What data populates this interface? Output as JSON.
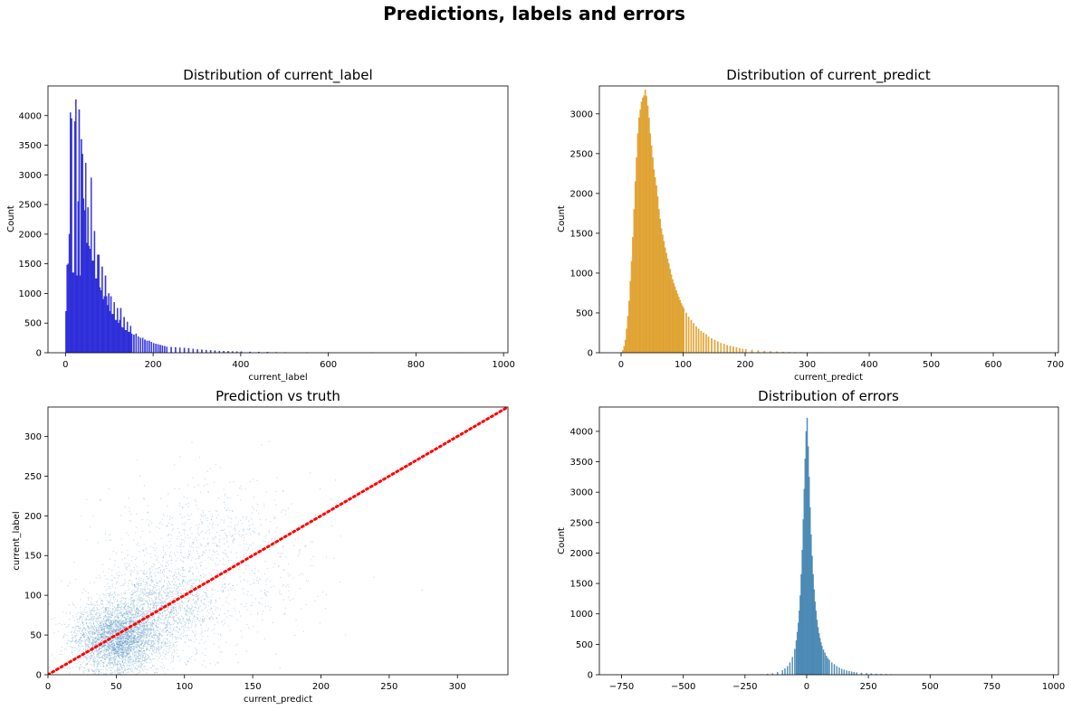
{
  "figure": {
    "title": "Predictions, labels and errors"
  },
  "colors": {
    "label_hist": "#1a1ad6",
    "predict_hist": "#dd9a1f",
    "scatter": "#4a8bbd",
    "errors_hist": "#3a7fae",
    "identity_line": "#ff0000"
  },
  "chart_data": [
    {
      "type": "histogram",
      "title": "Distribution of current_label",
      "xlabel": "current_label",
      "ylabel": "Count",
      "xlim": [
        -40,
        1010
      ],
      "ylim": [
        0,
        4500
      ],
      "xticks": [
        0,
        200,
        400,
        600,
        800,
        1000
      ],
      "yticks": [
        0,
        500,
        1000,
        1500,
        2000,
        2500,
        3000,
        3500,
        4000
      ],
      "color": "#1a1ad6",
      "bin_width": 2.5,
      "bins": [
        [
          0,
          700
        ],
        [
          2.5,
          1480
        ],
        [
          5,
          1500
        ],
        [
          7.5,
          2000
        ],
        [
          10,
          4050
        ],
        [
          12.5,
          3950
        ],
        [
          15,
          1350
        ],
        [
          17.5,
          1350
        ],
        [
          20,
          3900
        ],
        [
          22.5,
          4270
        ],
        [
          25,
          1300
        ],
        [
          27.5,
          2550
        ],
        [
          30,
          4100
        ],
        [
          32.5,
          1300
        ],
        [
          35,
          3600
        ],
        [
          37.5,
          3350
        ],
        [
          40,
          2600
        ],
        [
          42.5,
          2400
        ],
        [
          45,
          3200
        ],
        [
          47.5,
          1850
        ],
        [
          50,
          2450
        ],
        [
          52.5,
          1800
        ],
        [
          55,
          1750
        ],
        [
          57.5,
          2950
        ],
        [
          60,
          1550
        ],
        [
          62.5,
          1550
        ],
        [
          65,
          2050
        ],
        [
          67.5,
          1250
        ],
        [
          70,
          1250
        ],
        [
          72.5,
          1650
        ],
        [
          75,
          1650
        ],
        [
          77.5,
          1100
        ],
        [
          80,
          1050
        ],
        [
          82.5,
          1450
        ],
        [
          85,
          900
        ],
        [
          87.5,
          950
        ],
        [
          90,
          1300
        ],
        [
          92.5,
          950
        ],
        [
          95,
          800
        ],
        [
          97.5,
          1000
        ],
        [
          100,
          700
        ],
        [
          102.5,
          950
        ],
        [
          105,
          650
        ],
        [
          107.5,
          650
        ],
        [
          110,
          850
        ],
        [
          112.5,
          550
        ],
        [
          115,
          550
        ],
        [
          117.5,
          750
        ],
        [
          120,
          500
        ],
        [
          122.5,
          550
        ],
        [
          125,
          750
        ],
        [
          127.5,
          430
        ],
        [
          130,
          420
        ],
        [
          132.5,
          600
        ],
        [
          135,
          380
        ],
        [
          137.5,
          380
        ],
        [
          140,
          520
        ],
        [
          142.5,
          350
        ],
        [
          145,
          350
        ],
        [
          147.5,
          450
        ],
        [
          150,
          320
        ],
        [
          155,
          300
        ],
        [
          160,
          320
        ],
        [
          165,
          270
        ],
        [
          170,
          250
        ],
        [
          175,
          250
        ],
        [
          180,
          220
        ],
        [
          185,
          200
        ],
        [
          190,
          200
        ],
        [
          195,
          180
        ],
        [
          200,
          160
        ],
        [
          205,
          150
        ],
        [
          210,
          140
        ],
        [
          215,
          130
        ],
        [
          220,
          120
        ],
        [
          225,
          110
        ],
        [
          230,
          100
        ],
        [
          240,
          95
        ],
        [
          250,
          90
        ],
        [
          260,
          85
        ],
        [
          270,
          80
        ],
        [
          280,
          75
        ],
        [
          290,
          65
        ],
        [
          300,
          55
        ],
        [
          310,
          50
        ],
        [
          320,
          45
        ],
        [
          330,
          40
        ],
        [
          340,
          35
        ],
        [
          350,
          30
        ],
        [
          360,
          28
        ],
        [
          370,
          25
        ],
        [
          380,
          22
        ],
        [
          390,
          20
        ],
        [
          400,
          18
        ],
        [
          420,
          15
        ],
        [
          440,
          12
        ],
        [
          460,
          10
        ],
        [
          480,
          8
        ],
        [
          500,
          6
        ],
        [
          550,
          4
        ],
        [
          600,
          3
        ],
        [
          700,
          2
        ],
        [
          800,
          1
        ],
        [
          900,
          1
        ]
      ]
    },
    {
      "type": "histogram",
      "title": "Distribution of current_predict",
      "xlabel": "current_predict",
      "ylabel": "Count",
      "xlim": [
        -35,
        705
      ],
      "ylim": [
        0,
        3350
      ],
      "xticks": [
        0,
        100,
        200,
        300,
        400,
        500,
        600,
        700
      ],
      "yticks": [
        0,
        500,
        1000,
        1500,
        2000,
        2500,
        3000
      ],
      "color": "#dd9a1f",
      "bin_width": 2,
      "bins": [
        [
          0,
          5
        ],
        [
          2,
          30
        ],
        [
          4,
          80
        ],
        [
          6,
          160
        ],
        [
          8,
          300
        ],
        [
          10,
          460
        ],
        [
          12,
          650
        ],
        [
          14,
          900
        ],
        [
          16,
          1150
        ],
        [
          18,
          1450
        ],
        [
          20,
          1800
        ],
        [
          22,
          2150
        ],
        [
          24,
          2450
        ],
        [
          26,
          2750
        ],
        [
          28,
          2950
        ],
        [
          30,
          3050
        ],
        [
          32,
          3150
        ],
        [
          34,
          3200
        ],
        [
          36,
          3230
        ],
        [
          38,
          3300
        ],
        [
          40,
          3220
        ],
        [
          42,
          3100
        ],
        [
          44,
          2950
        ],
        [
          46,
          2750
        ],
        [
          48,
          2600
        ],
        [
          50,
          2450
        ],
        [
          52,
          2300
        ],
        [
          54,
          2200
        ],
        [
          56,
          2100
        ],
        [
          58,
          1960
        ],
        [
          60,
          1800
        ],
        [
          62,
          1680
        ],
        [
          64,
          1560
        ],
        [
          66,
          1480
        ],
        [
          68,
          1400
        ],
        [
          70,
          1320
        ],
        [
          72,
          1250
        ],
        [
          74,
          1180
        ],
        [
          76,
          1120
        ],
        [
          78,
          1050
        ],
        [
          80,
          980
        ],
        [
          82,
          920
        ],
        [
          84,
          870
        ],
        [
          86,
          830
        ],
        [
          88,
          780
        ],
        [
          90,
          740
        ],
        [
          92,
          700
        ],
        [
          94,
          660
        ],
        [
          96,
          620
        ],
        [
          98,
          590
        ],
        [
          100,
          560
        ],
        [
          104,
          500
        ],
        [
          108,
          450
        ],
        [
          112,
          410
        ],
        [
          116,
          370
        ],
        [
          120,
          330
        ],
        [
          124,
          300
        ],
        [
          128,
          270
        ],
        [
          132,
          250
        ],
        [
          136,
          230
        ],
        [
          140,
          200
        ],
        [
          145,
          180
        ],
        [
          150,
          160
        ],
        [
          155,
          140
        ],
        [
          160,
          120
        ],
        [
          165,
          110
        ],
        [
          170,
          95
        ],
        [
          175,
          85
        ],
        [
          180,
          75
        ],
        [
          185,
          65
        ],
        [
          190,
          55
        ],
        [
          195,
          48
        ],
        [
          200,
          42
        ],
        [
          210,
          35
        ],
        [
          220,
          28
        ],
        [
          230,
          22
        ],
        [
          240,
          17
        ],
        [
          250,
          13
        ],
        [
          260,
          10
        ],
        [
          270,
          8
        ],
        [
          280,
          6
        ],
        [
          290,
          5
        ],
        [
          300,
          4
        ],
        [
          320,
          2
        ],
        [
          350,
          1
        ],
        [
          400,
          1
        ],
        [
          500,
          1
        ],
        [
          600,
          1
        ]
      ]
    },
    {
      "type": "scatter",
      "title": "Prediction vs truth",
      "xlabel": "current_predict",
      "ylabel": "current_label",
      "xlim": [
        0,
        337
      ],
      "ylim": [
        0,
        337
      ],
      "xticks": [
        0,
        50,
        100,
        150,
        200,
        250,
        300
      ],
      "yticks": [
        0,
        50,
        100,
        150,
        200,
        250,
        300
      ],
      "color": "#4a8bbd",
      "identity_line": {
        "from": [
          0,
          0
        ],
        "to": [
          337,
          337
        ],
        "style": "dotted",
        "color": "#ff0000"
      },
      "density_clusters": [
        {
          "center": [
            50,
            45
          ],
          "spread": [
            25,
            35
          ],
          "weight": 0.55
        },
        {
          "center": [
            80,
            80
          ],
          "spread": [
            35,
            50
          ],
          "weight": 0.3
        },
        {
          "center": [
            120,
            150
          ],
          "spread": [
            60,
            80
          ],
          "weight": 0.15
        }
      ]
    },
    {
      "type": "histogram",
      "title": "Distribution of errors",
      "xlabel": "",
      "ylabel": "Count",
      "xlim": [
        -840,
        1020
      ],
      "ylim": [
        0,
        4400
      ],
      "xticks": [
        -750,
        -500,
        -250,
        0,
        250,
        500,
        750,
        1000
      ],
      "yticks": [
        0,
        500,
        1000,
        1500,
        2000,
        2500,
        3000,
        3500,
        4000
      ],
      "color": "#3a7fae",
      "bin_width": 4,
      "bins": [
        [
          -200,
          2
        ],
        [
          -180,
          5
        ],
        [
          -160,
          10
        ],
        [
          -140,
          20
        ],
        [
          -120,
          40
        ],
        [
          -100,
          70
        ],
        [
          -90,
          100
        ],
        [
          -80,
          140
        ],
        [
          -70,
          200
        ],
        [
          -60,
          290
        ],
        [
          -50,
          420
        ],
        [
          -44,
          560
        ],
        [
          -40,
          700
        ],
        [
          -36,
          850
        ],
        [
          -32,
          1050
        ],
        [
          -28,
          1300
        ],
        [
          -24,
          1650
        ],
        [
          -20,
          2050
        ],
        [
          -16,
          2550
        ],
        [
          -12,
          3050
        ],
        [
          -8,
          3550
        ],
        [
          -4,
          4000
        ],
        [
          0,
          4220
        ],
        [
          4,
          3750
        ],
        [
          8,
          3250
        ],
        [
          12,
          2750
        ],
        [
          16,
          2300
        ],
        [
          20,
          1950
        ],
        [
          24,
          1650
        ],
        [
          28,
          1400
        ],
        [
          32,
          1200
        ],
        [
          36,
          1050
        ],
        [
          40,
          900
        ],
        [
          44,
          780
        ],
        [
          48,
          680
        ],
        [
          52,
          600
        ],
        [
          56,
          530
        ],
        [
          60,
          470
        ],
        [
          66,
          410
        ],
        [
          72,
          360
        ],
        [
          78,
          310
        ],
        [
          84,
          270
        ],
        [
          90,
          240
        ],
        [
          100,
          200
        ],
        [
          110,
          170
        ],
        [
          120,
          140
        ],
        [
          130,
          115
        ],
        [
          140,
          95
        ],
        [
          150,
          80
        ],
        [
          160,
          68
        ],
        [
          170,
          58
        ],
        [
          180,
          50
        ],
        [
          190,
          43
        ],
        [
          200,
          37
        ],
        [
          220,
          30
        ],
        [
          240,
          24
        ],
        [
          260,
          18
        ],
        [
          280,
          14
        ],
        [
          300,
          11
        ],
        [
          320,
          9
        ],
        [
          340,
          7
        ],
        [
          360,
          5
        ],
        [
          400,
          3
        ],
        [
          450,
          2
        ],
        [
          500,
          2
        ],
        [
          600,
          1
        ],
        [
          700,
          1
        ],
        [
          800,
          1
        ],
        [
          900,
          1
        ]
      ]
    }
  ]
}
